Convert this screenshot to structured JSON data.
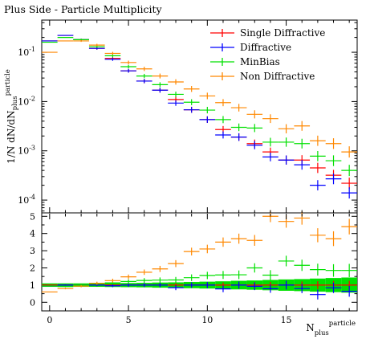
{
  "chart_data": {
    "type": "scatter",
    "title": "Plus Side - Particle Multiplicity",
    "xlabel": "N",
    "xlabel_sub": "plus",
    "xlabel_sup": "particle",
    "ylabel": "1/N dN/dN",
    "ylabel_sub": "plus",
    "ylabel_sup": "particle",
    "xlim": [
      -0.5,
      19.5
    ],
    "main_ylim": [
      5.5e-05,
      0.45
    ],
    "main_yscale": "log",
    "ratio_ylim": [
      -0.5,
      5.2
    ],
    "legend_position": "top-right",
    "x_ticks": [
      "0",
      "5",
      "10",
      "15"
    ],
    "main_y_ticks": [
      {
        "base": "10",
        "exp": "-1",
        "value": 0.1
      },
      {
        "base": "10",
        "exp": "-2",
        "value": 0.01
      },
      {
        "base": "10",
        "exp": "-3",
        "value": 0.001
      },
      {
        "base": "10",
        "exp": "-4",
        "value": 0.0001
      }
    ],
    "ratio_y_ticks": [
      "0",
      "1",
      "2",
      "3",
      "4",
      "5"
    ],
    "x": [
      0,
      1,
      2,
      3,
      4,
      5,
      6,
      7,
      8,
      9,
      10,
      11,
      12,
      13,
      14,
      15,
      16,
      17,
      18,
      19
    ],
    "reference_band": [
      0.1,
      0.1,
      0.1,
      0.1,
      0.11,
      0.12,
      0.13,
      0.15,
      0.16,
      0.18,
      0.2,
      0.22,
      0.25,
      0.27,
      0.3,
      0.33,
      0.35,
      0.38,
      0.41,
      0.44
    ],
    "series": [
      {
        "name": "Single Diffractive",
        "color": "#ff0000",
        "values": [
          0.17,
          0.22,
          0.18,
          0.12,
          0.075,
          0.042,
          0.026,
          0.017,
          0.011,
          0.0068,
          0.0043,
          0.0027,
          0.0019,
          0.0014,
          0.00095,
          0.00065,
          0.00065,
          0.00045,
          0.00032,
          0.00022
        ],
        "ratio": [
          1.0,
          1.0,
          1.0,
          1.0,
          1.0,
          1.0,
          1.0,
          1.0,
          1.0,
          1.0,
          1.0,
          1.0,
          1.0,
          1.0,
          1.0,
          1.0,
          1.0,
          1.0,
          1.0,
          1.0
        ]
      },
      {
        "name": "Diffractive",
        "color": "#0000ff",
        "values": [
          0.17,
          0.22,
          0.18,
          0.12,
          0.072,
          0.042,
          0.026,
          0.017,
          0.0093,
          0.0068,
          0.0043,
          0.0021,
          0.0019,
          0.0013,
          0.00075,
          0.00065,
          0.00052,
          0.0002,
          0.00027,
          0.00014
        ],
        "ratio": [
          0.95,
          1.0,
          1.0,
          1.0,
          0.96,
          1.0,
          1.0,
          1.0,
          0.85,
          1.0,
          1.0,
          0.78,
          1.0,
          0.93,
          0.79,
          1.0,
          0.8,
          0.45,
          0.84,
          0.64
        ]
      },
      {
        "name": "MinBias",
        "color": "#00e000",
        "values": [
          0.16,
          0.2,
          0.18,
          0.13,
          0.085,
          0.051,
          0.033,
          0.022,
          0.014,
          0.0097,
          0.0067,
          0.0043,
          0.003,
          0.0029,
          0.0015,
          0.0015,
          0.0014,
          0.00078,
          0.00063,
          0.0004
        ],
        "ratio": [
          0.95,
          0.92,
          1.0,
          1.08,
          1.13,
          1.21,
          1.27,
          1.29,
          1.3,
          1.43,
          1.56,
          1.59,
          1.6,
          2.0,
          1.58,
          2.4,
          2.15,
          1.9,
          1.85,
          1.85
        ]
      },
      {
        "name": "Non Diffractive",
        "color": "#ff8800",
        "values": [
          0.1,
          0.17,
          0.17,
          0.14,
          0.095,
          0.062,
          0.046,
          0.033,
          0.025,
          0.018,
          0.013,
          0.0095,
          0.0075,
          0.0055,
          0.0045,
          0.0028,
          0.0032,
          0.0016,
          0.0014,
          0.00095
        ],
        "ratio": [
          0.6,
          0.8,
          0.94,
          1.11,
          1.26,
          1.48,
          1.75,
          1.94,
          2.25,
          2.95,
          3.1,
          3.5,
          3.7,
          3.6,
          5.0,
          4.7,
          4.9,
          3.9,
          3.7,
          4.4
        ]
      }
    ]
  }
}
